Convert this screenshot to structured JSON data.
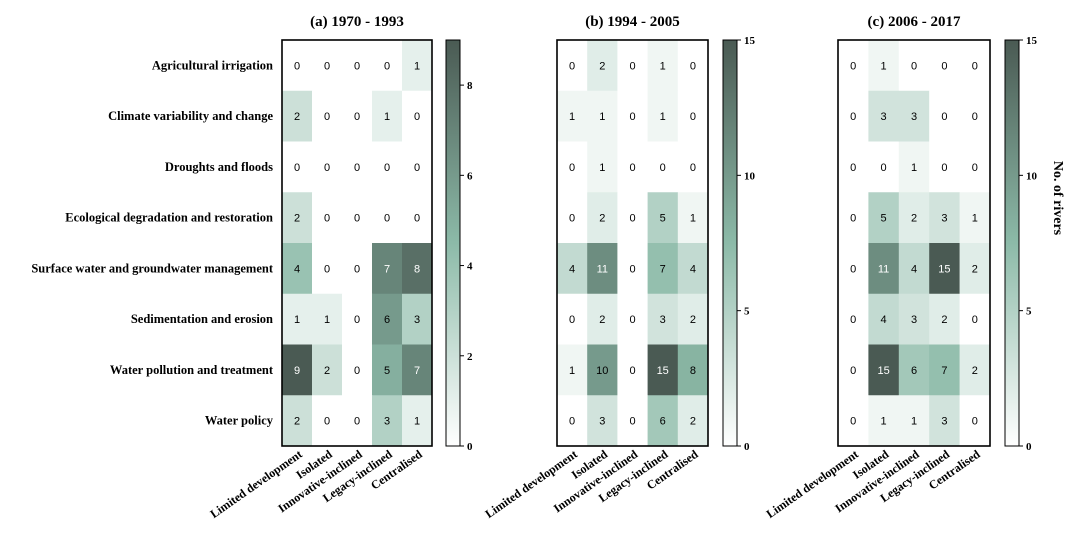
{
  "chart_data": [
    {
      "type": "heatmap",
      "title": "(a) 1970 - 1993",
      "rows": [
        "Agricultural irrigation",
        "Climate variability and change",
        "Droughts and floods",
        "Ecological degradation and restoration",
        "Surface water and groundwater management",
        "Sedimentation and erosion",
        "Water pollution and treatment",
        "Water policy"
      ],
      "columns": [
        "Limited development",
        "Isolated",
        "Innovative-inclined",
        "Legacy-inclined",
        "Centralised"
      ],
      "values": [
        [
          0,
          0,
          0,
          0,
          1
        ],
        [
          2,
          0,
          0,
          1,
          0
        ],
        [
          0,
          0,
          0,
          0,
          0
        ],
        [
          2,
          0,
          0,
          0,
          0
        ],
        [
          4,
          0,
          0,
          7,
          8
        ],
        [
          1,
          1,
          0,
          6,
          3
        ],
        [
          9,
          2,
          0,
          5,
          7
        ],
        [
          2,
          0,
          0,
          3,
          1
        ]
      ],
      "colorbar": {
        "min": 0,
        "max": 9,
        "ticks": [
          0,
          2,
          4,
          6,
          8
        ],
        "label": ""
      }
    },
    {
      "type": "heatmap",
      "title": "(b) 1994 - 2005",
      "rows": [
        "Agricultural irrigation",
        "Climate variability and change",
        "Droughts and floods",
        "Ecological degradation and restoration",
        "Surface water and groundwater management",
        "Sedimentation and erosion",
        "Water pollution and treatment",
        "Water policy"
      ],
      "columns": [
        "Limited development",
        "Isolated",
        "Innovative-inclined",
        "Legacy-inclined",
        "Centralised"
      ],
      "values": [
        [
          0,
          2,
          0,
          1,
          0
        ],
        [
          1,
          1,
          0,
          1,
          0
        ],
        [
          0,
          1,
          0,
          0,
          0
        ],
        [
          0,
          2,
          0,
          5,
          1
        ],
        [
          4,
          11,
          0,
          7,
          4
        ],
        [
          0,
          2,
          0,
          3,
          2
        ],
        [
          1,
          10,
          0,
          15,
          8
        ],
        [
          0,
          3,
          0,
          6,
          2
        ]
      ],
      "colorbar": {
        "min": 0,
        "max": 15,
        "ticks": [
          0,
          5,
          10,
          15
        ],
        "label": ""
      }
    },
    {
      "type": "heatmap",
      "title": "(c) 2006 - 2017",
      "rows": [
        "Agricultural irrigation",
        "Climate variability and change",
        "Droughts and floods",
        "Ecological degradation and restoration",
        "Surface water and groundwater management",
        "Sedimentation and erosion",
        "Water pollution and treatment",
        "Water policy"
      ],
      "columns": [
        "Limited development",
        "Isolated",
        "Innovative-inclined",
        "Legacy-inclined",
        "Centralised"
      ],
      "values": [
        [
          0,
          1,
          0,
          0,
          0
        ],
        [
          0,
          3,
          3,
          0,
          0
        ],
        [
          0,
          0,
          1,
          0,
          0
        ],
        [
          0,
          5,
          2,
          3,
          1
        ],
        [
          0,
          11,
          4,
          15,
          2
        ],
        [
          0,
          4,
          3,
          2,
          0
        ],
        [
          0,
          15,
          6,
          7,
          2
        ],
        [
          0,
          1,
          1,
          3,
          0
        ]
      ],
      "colorbar": {
        "min": 0,
        "max": 15,
        "ticks": [
          0,
          5,
          10,
          15
        ],
        "label": "No. of rivers"
      }
    }
  ],
  "colors": {
    "low": "#ffffff",
    "mid": "#8cbaa8",
    "high": "#4a5a53",
    "text_dark": "#000000",
    "text_light": "#ffffff"
  }
}
